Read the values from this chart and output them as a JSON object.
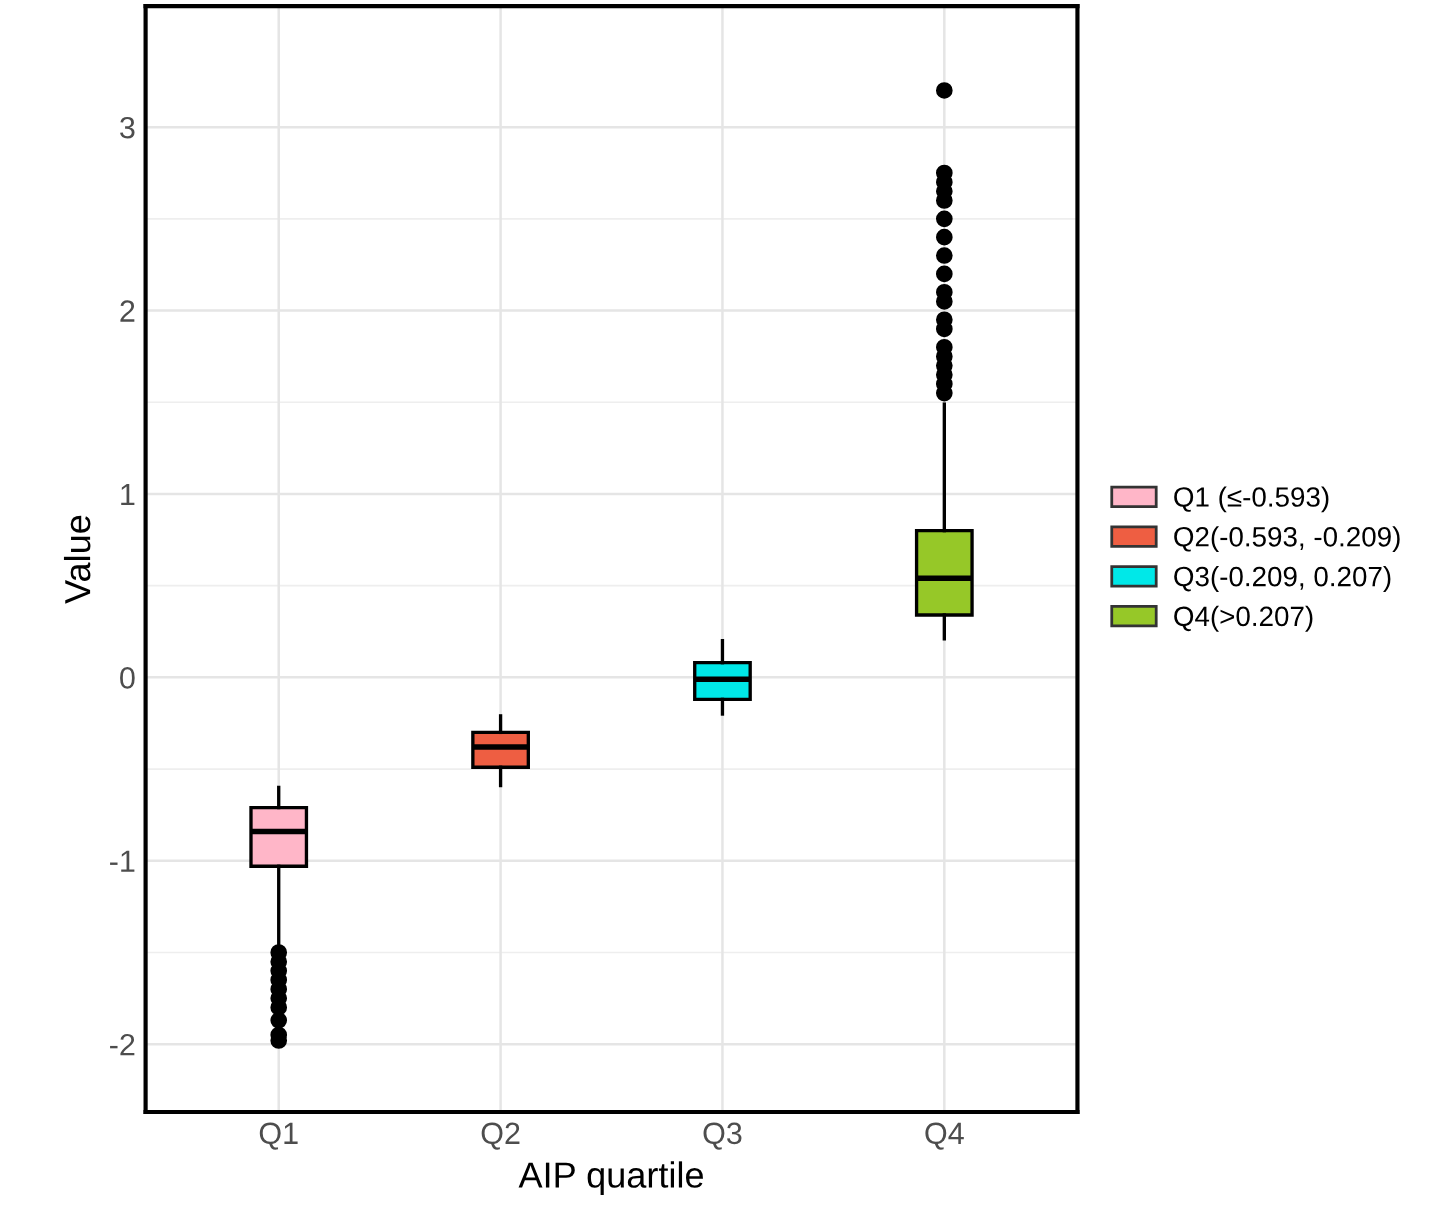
{
  "chart_data": {
    "type": "box",
    "xlabel": "AIP quartile",
    "ylabel": "Value",
    "categories": [
      "Q1",
      "Q2",
      "Q3",
      "Q4"
    ],
    "series": [
      {
        "name": "Q1 (≤-0.593)",
        "color": "#ffb6c8",
        "x": [
          "Q1"
        ],
        "boxes": [
          {
            "low": -1.48,
            "q1": -1.03,
            "median": -0.84,
            "q3": -0.71,
            "high": -0.6,
            "outliers": [
              -1.5,
              -1.55,
              -1.6,
              -1.65,
              -1.7,
              -1.75,
              -1.8,
              -1.87,
              -1.95,
              -1.98
            ]
          }
        ]
      },
      {
        "name": "Q2(-0.593, -0.209)",
        "color": "#ee5e42",
        "x": [
          "Q2"
        ],
        "boxes": [
          {
            "low": -0.59,
            "q1": -0.49,
            "median": -0.38,
            "q3": -0.3,
            "high": -0.21
          }
        ]
      },
      {
        "name": "Q3(-0.209, 0.207)",
        "color": "#00e8e8",
        "x": [
          "Q3"
        ],
        "boxes": [
          {
            "low": -0.2,
            "q1": -0.12,
            "median": -0.01,
            "q3": 0.08,
            "high": 0.2
          }
        ]
      },
      {
        "name": "Q4(>0.207)",
        "color": "#96c828",
        "x": [
          "Q4"
        ],
        "boxes": [
          {
            "low": 0.21,
            "q1": 0.34,
            "median": 0.54,
            "q3": 0.8,
            "high": 1.49,
            "outliers": [
              1.55,
              1.6,
              1.65,
              1.7,
              1.75,
              1.8,
              1.9,
              1.95,
              2.05,
              2.1,
              2.2,
              2.3,
              2.4,
              2.5,
              2.6,
              2.65,
              2.7,
              2.75,
              3.2
            ]
          }
        ]
      }
    ],
    "ylim": [
      -2.37,
      3.66
    ],
    "yticks": [
      -2,
      -1,
      0,
      1,
      2,
      3
    ],
    "grid": true,
    "legend": "right"
  }
}
